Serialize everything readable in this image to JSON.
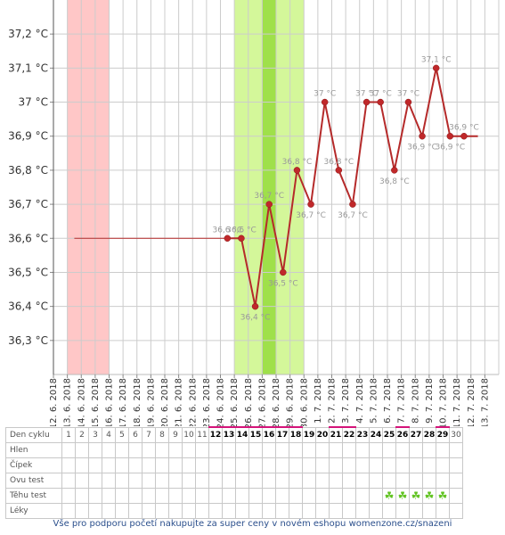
{
  "chart_data": {
    "type": "line",
    "y_ticks": [
      "36,3 °C",
      "36,4 °C",
      "36,5 °C",
      "36,6 °C",
      "36,7 °C",
      "36,8 °C",
      "36,9 °C",
      "37 °C",
      "37,1 °C",
      "37,2 °C"
    ],
    "ylim": [
      36.2,
      37.3
    ],
    "dates": [
      "12. 6. 2018",
      "13. 6. 2018",
      "14. 6. 2018",
      "15. 6. 2018",
      "16. 6. 2018",
      "17. 6. 2018",
      "18. 6. 2018",
      "19. 6. 2018",
      "20. 6. 2018",
      "21. 6. 2018",
      "22. 6. 2018",
      "23. 6. 2018",
      "24. 6. 2018",
      "25. 6. 2018",
      "26. 6. 2018",
      "27. 6. 2018",
      "28. 6. 2018",
      "29. 6. 2018",
      "30. 6. 2018",
      "1. 7. 2018",
      "2. 7. 2018",
      "3. 7. 2018",
      "4. 7. 2018",
      "5. 7. 2018",
      "6. 7. 2018",
      "7. 7. 2018",
      "8. 7. 2018",
      "9. 7. 2018",
      "10. 7. 2018",
      "11. 7. 2018",
      "12. 7. 2018",
      "13. 7. 2018"
    ],
    "menstruation_days": [
      "13. 6. 2018",
      "14. 6. 2018",
      "15. 6. 2018"
    ],
    "fertile_window": [
      "25. 6. 2018",
      "29. 6. 2018"
    ],
    "ovulation_day": "27. 6. 2018",
    "baseline": {
      "value": 36.6,
      "from": "13. 6. 2018",
      "to": "24. 6. 2018"
    },
    "series": [
      {
        "values": [
          {
            "x": "24. 6. 2018",
            "y": 36.6,
            "label": "36,6 °C"
          },
          {
            "x": "25. 6. 2018",
            "y": 36.6,
            "label": "36,6 °C"
          },
          {
            "x": "26. 6. 2018",
            "y": 36.4,
            "label": "36,4 °C"
          },
          {
            "x": "27. 6. 2018",
            "y": 36.7,
            "label": "36,7 °C"
          },
          {
            "x": "28. 6. 2018",
            "y": 36.5,
            "label": "36,5 °C"
          },
          {
            "x": "29. 6. 2018",
            "y": 36.8,
            "label": "36,8 °C"
          },
          {
            "x": "30. 6. 2018",
            "y": 36.7,
            "label": "36,7 °C"
          },
          {
            "x": "1. 7. 2018",
            "y": 37.0,
            "label": "37 °C"
          },
          {
            "x": "2. 7. 2018",
            "y": 36.8,
            "label": "36,8 °C"
          },
          {
            "x": "3. 7. 2018",
            "y": 36.7,
            "label": "36,7 °C"
          },
          {
            "x": "4. 7. 2018",
            "y": 37.0,
            "label": "37 °C"
          },
          {
            "x": "5. 7. 2018",
            "y": 37.0,
            "label": "37 °C"
          },
          {
            "x": "6. 7. 2018",
            "y": 36.8,
            "label": "36,8 °C"
          },
          {
            "x": "7. 7. 2018",
            "y": 37.0,
            "label": "37 °C"
          },
          {
            "x": "8. 7. 2018",
            "y": 36.9,
            "label": "36,9 °C"
          },
          {
            "x": "9. 7. 2018",
            "y": 37.1,
            "label": "37,1 °C"
          },
          {
            "x": "10. 7. 2018",
            "y": 36.9,
            "label": "36,9 °C"
          },
          {
            "x": "11. 7. 2018",
            "y": 36.9,
            "label": "36,9 °C"
          }
        ]
      }
    ],
    "line_end": {
      "x": "12. 7. 2018",
      "y": 36.9
    },
    "colors": {
      "line": "#b52a2a",
      "point": "#c0282a",
      "menstruation": "#ffc7c7",
      "fertile": "#d4f79a",
      "ovulation": "#9fe04a",
      "label": "#999999"
    }
  },
  "table": {
    "row_labels": [
      "Den cyklu",
      "Hlen",
      "Čípek",
      "Ovu test",
      "Těhu test",
      "Léky"
    ],
    "days": [
      "1",
      "2",
      "3",
      "4",
      "5",
      "6",
      "7",
      "8",
      "9",
      "10",
      "11",
      "12",
      "13",
      "14",
      "15",
      "16",
      "17",
      "18",
      "19",
      "20",
      "21",
      "22",
      "23",
      "24",
      "25",
      "26",
      "27",
      "28",
      "29",
      "30"
    ],
    "bold_from_day": "12",
    "marked_days": [
      "12",
      "13",
      "14",
      "15",
      "16",
      "17",
      "18",
      "21",
      "22",
      "26",
      "29"
    ],
    "pregnancy_test_days": [
      "25",
      "26",
      "27",
      "28",
      "29"
    ],
    "pregnancy_test_icon": "clover-icon"
  },
  "footer": {
    "text": "Vše pro podporu početí nakupujte za super ceny v novém eshopu womenzone.cz/snazeni"
  }
}
